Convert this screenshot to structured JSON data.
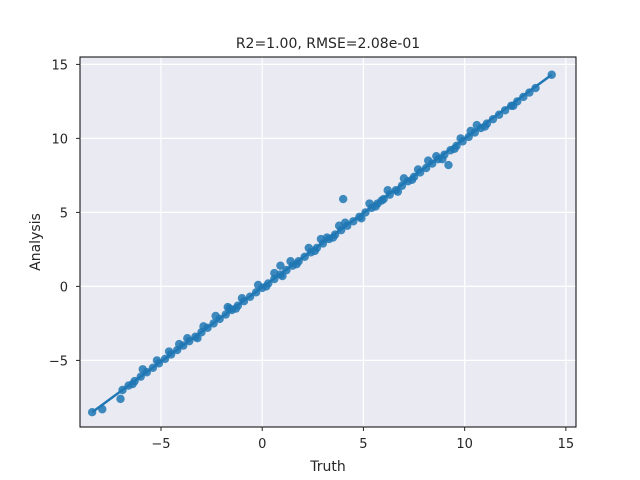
{
  "chart_data": {
    "type": "scatter",
    "title": "R2=1.00, RMSE=2.08e-01",
    "xlabel": "Truth",
    "ylabel": "Analysis",
    "xlim": [
      -9.0,
      15.5
    ],
    "ylim": [
      -9.5,
      15.5
    ],
    "xticks": [
      -5,
      0,
      5,
      10,
      15
    ],
    "yticks": [
      -5,
      0,
      5,
      10,
      15
    ],
    "xtick_labels": [
      "−5",
      "0",
      "5",
      "10",
      "15"
    ],
    "ytick_labels": [
      "−5",
      "0",
      "5",
      "10",
      "15"
    ],
    "grid": true,
    "legend": "none",
    "colors": {
      "point": "#1f77b4",
      "line": "#1f77b4",
      "background": "#eaeaf2",
      "grid": "#ffffff",
      "frame": "#000000"
    },
    "series": [
      {
        "values": [
          [
            -8.4,
            -8.5
          ],
          [
            -7.9,
            -8.3
          ],
          [
            -7.0,
            -7.6
          ],
          [
            -6.9,
            -7.0
          ],
          [
            -6.6,
            -6.7
          ],
          [
            -6.3,
            -6.4
          ],
          [
            -6.0,
            -6.1
          ],
          [
            -5.7,
            -5.8
          ],
          [
            -5.4,
            -5.5
          ],
          [
            -5.1,
            -5.2
          ],
          [
            -4.8,
            -4.9
          ],
          [
            -4.5,
            -4.6
          ],
          [
            -4.2,
            -4.3
          ],
          [
            -3.9,
            -4.0
          ],
          [
            -3.6,
            -3.7
          ],
          [
            -3.3,
            -3.4
          ],
          [
            -3.0,
            -3.1
          ],
          [
            -2.7,
            -2.8
          ],
          [
            -2.4,
            -2.5
          ],
          [
            -2.1,
            -2.2
          ],
          [
            -1.8,
            -1.9
          ],
          [
            -1.5,
            -1.6
          ],
          [
            -1.2,
            -1.3
          ],
          [
            -0.9,
            -1.0
          ],
          [
            -0.6,
            -0.7
          ],
          [
            -0.3,
            -0.4
          ],
          [
            0.0,
            -0.1
          ],
          [
            0.3,
            0.2
          ],
          [
            0.6,
            0.5
          ],
          [
            0.9,
            0.8
          ],
          [
            1.2,
            1.1
          ],
          [
            1.5,
            1.4
          ],
          [
            1.8,
            1.7
          ],
          [
            2.1,
            2.0
          ],
          [
            2.4,
            2.3
          ],
          [
            2.7,
            2.6
          ],
          [
            3.0,
            2.9
          ],
          [
            3.3,
            3.2
          ],
          [
            3.6,
            3.5
          ],
          [
            3.9,
            3.8
          ],
          [
            4.2,
            4.1
          ],
          [
            4.5,
            4.4
          ],
          [
            4.8,
            4.7
          ],
          [
            5.1,
            5.0
          ],
          [
            5.4,
            5.3
          ],
          [
            5.7,
            5.6
          ],
          [
            6.0,
            5.9
          ],
          [
            6.3,
            6.2
          ],
          [
            6.6,
            6.5
          ],
          [
            6.9,
            6.8
          ],
          [
            7.2,
            7.1
          ],
          [
            7.5,
            7.4
          ],
          [
            7.8,
            7.7
          ],
          [
            8.1,
            8.0
          ],
          [
            8.4,
            8.3
          ],
          [
            8.7,
            8.6
          ],
          [
            9.0,
            8.9
          ],
          [
            9.3,
            9.2
          ],
          [
            9.6,
            9.5
          ],
          [
            9.9,
            9.8
          ],
          [
            10.2,
            10.1
          ],
          [
            10.5,
            10.4
          ],
          [
            10.8,
            10.7
          ],
          [
            11.1,
            11.0
          ],
          [
            11.4,
            11.3
          ],
          [
            11.7,
            11.6
          ],
          [
            12.0,
            11.9
          ],
          [
            12.3,
            12.2
          ],
          [
            12.6,
            12.5
          ],
          [
            12.9,
            12.8
          ],
          [
            13.2,
            13.1
          ],
          [
            13.5,
            13.4
          ],
          [
            14.3,
            14.3
          ],
          [
            -5.2,
            -5.0
          ],
          [
            -4.1,
            -3.9
          ],
          [
            -2.3,
            -2.0
          ],
          [
            -1.0,
            -0.8
          ],
          [
            0.6,
            0.9
          ],
          [
            1.7,
            1.5
          ],
          [
            2.9,
            3.2
          ],
          [
            3.8,
            4.1
          ],
          [
            4.9,
            4.6
          ],
          [
            6.2,
            6.5
          ],
          [
            7.4,
            7.2
          ],
          [
            8.6,
            8.8
          ],
          [
            9.8,
            10.0
          ],
          [
            11.0,
            10.8
          ],
          [
            -5.9,
            -5.6
          ],
          [
            -3.2,
            -3.5
          ],
          [
            -1.7,
            -1.4
          ],
          [
            -0.2,
            0.1
          ],
          [
            1.0,
            0.7
          ],
          [
            2.3,
            2.6
          ],
          [
            3.5,
            3.3
          ],
          [
            5.3,
            5.6
          ],
          [
            6.7,
            6.4
          ],
          [
            8.2,
            8.5
          ],
          [
            9.5,
            9.3
          ],
          [
            10.6,
            10.9
          ],
          [
            -6.4,
            -6.6
          ],
          [
            -4.6,
            -4.4
          ],
          [
            -2.9,
            -2.7
          ],
          [
            -1.3,
            -1.5
          ],
          [
            0.2,
            0.0
          ],
          [
            1.4,
            1.7
          ],
          [
            2.6,
            2.4
          ],
          [
            4.1,
            4.3
          ],
          [
            5.6,
            5.4
          ],
          [
            7.0,
            7.3
          ],
          [
            8.9,
            8.6
          ],
          [
            10.3,
            10.5
          ],
          [
            12.4,
            12.2
          ],
          [
            -1.6,
            -1.5
          ],
          [
            4.0,
            5.9
          ],
          [
            9.2,
            8.2
          ],
          [
            0.9,
            1.4
          ],
          [
            3.2,
            3.3
          ],
          [
            5.9,
            5.8
          ],
          [
            7.7,
            7.9
          ],
          [
            -3.7,
            -3.5
          ]
        ]
      }
    ],
    "fit_line": {
      "x": [
        -8.4,
        14.3
      ],
      "y": [
        -8.5,
        14.3
      ]
    }
  }
}
